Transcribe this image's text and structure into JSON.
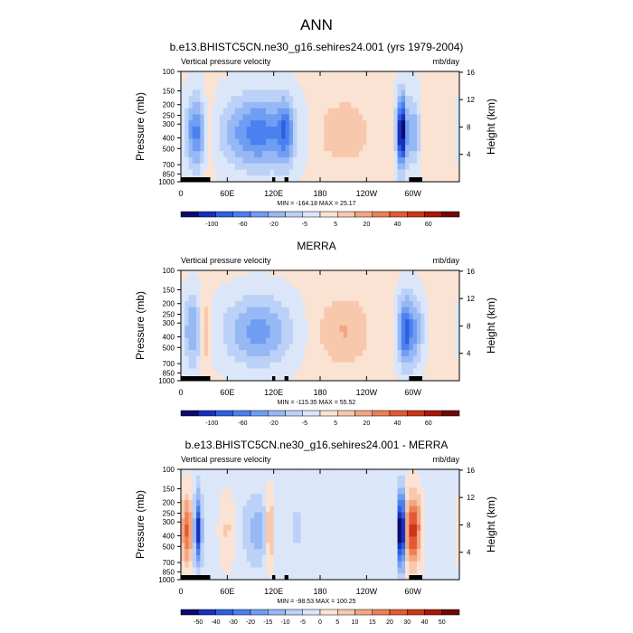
{
  "figure": {
    "main_title": "ANN"
  },
  "chart_data": [
    {
      "type": "heatmap",
      "title": "b.e13.BHISTC5CN.ne30_g16.sehires24.001 (yrs 1979-2004)",
      "left_label": "Vertical pressure velocity",
      "right_label": "mb/day",
      "ylabel": "Pressure (mb)",
      "y2label": "Height (km)",
      "x_ticks": [
        "0",
        "60E",
        "120E",
        "180",
        "120W",
        "60W"
      ],
      "x_tick_lon": [
        0,
        60,
        120,
        180,
        240,
        300
      ],
      "xlim": [
        0,
        360
      ],
      "y_ticks": [
        "100",
        "150",
        "200",
        "250",
        "300",
        "400",
        "500",
        "700",
        "850",
        "1000"
      ],
      "y_tick_p": [
        100,
        150,
        200,
        250,
        300,
        400,
        500,
        700,
        850,
        1000
      ],
      "ylim": [
        1000,
        100
      ],
      "y2_ticks": [
        "16",
        "12",
        "8",
        "4"
      ],
      "y2_tick_km": [
        16,
        12,
        8,
        4
      ],
      "stats": "MIN = -164.18  MAX = 25.17",
      "colorbar_labels": [
        "-100",
        "-60",
        "-20",
        "-5",
        "5",
        "20",
        "40",
        "60"
      ],
      "colorbar_colors": [
        "#0a0a6e",
        "#1a2fbd",
        "#2f5fe0",
        "#4a80f0",
        "#6f9df2",
        "#96b8f5",
        "#bcd1f7",
        "#dbe6f9",
        "#fbe3d4",
        "#f8c8ad",
        "#f3a582",
        "#ec7f56",
        "#e25a33",
        "#cc3418",
        "#a8180a",
        "#6e0a05"
      ],
      "features": [
        {
          "lon": 20,
          "w": 14,
          "v": -60
        },
        {
          "lon": 35,
          "w": 8,
          "v": 30
        },
        {
          "lon": 100,
          "w": 45,
          "v": -65
        },
        {
          "lon": 135,
          "w": 10,
          "v": -40
        },
        {
          "lon": 210,
          "w": 40,
          "v": 22
        },
        {
          "lon": 285,
          "w": 6,
          "v": -110
        },
        {
          "lon": 300,
          "w": 12,
          "v": -40
        },
        {
          "lon": 315,
          "w": 8,
          "v": 15
        }
      ],
      "background_value": 2
    },
    {
      "type": "heatmap",
      "title": "MERRA",
      "left_label": "Vertical pressure velocity",
      "right_label": "mb/day",
      "ylabel": "Pressure (mb)",
      "y2label": "Height (km)",
      "x_ticks": [
        "0",
        "60E",
        "120E",
        "180",
        "120W",
        "60W"
      ],
      "x_tick_lon": [
        0,
        60,
        120,
        180,
        240,
        300
      ],
      "xlim": [
        0,
        360
      ],
      "y_ticks": [
        "100",
        "150",
        "200",
        "250",
        "300",
        "400",
        "500",
        "700",
        "850",
        "1000"
      ],
      "y_tick_p": [
        100,
        150,
        200,
        250,
        300,
        400,
        500,
        700,
        850,
        1000
      ],
      "ylim": [
        1000,
        100
      ],
      "y2_ticks": [
        "16",
        "12",
        "8",
        "4"
      ],
      "y2_tick_km": [
        16,
        12,
        8,
        4
      ],
      "stats": "MIN = -115.35  MAX = 55.52",
      "colorbar_labels": [
        "-100",
        "-60",
        "-20",
        "-5",
        "5",
        "20",
        "40",
        "60"
      ],
      "colorbar_colors": [
        "#0a0a6e",
        "#1a2fbd",
        "#2f5fe0",
        "#4a80f0",
        "#6f9df2",
        "#96b8f5",
        "#bcd1f7",
        "#dbe6f9",
        "#fbe3d4",
        "#f8c8ad",
        "#f3a582",
        "#ec7f56",
        "#e25a33",
        "#cc3418",
        "#a8180a",
        "#6e0a05"
      ],
      "features": [
        {
          "lon": 15,
          "w": 12,
          "v": -45
        },
        {
          "lon": 30,
          "w": 6,
          "v": 35
        },
        {
          "lon": 100,
          "w": 45,
          "v": -50
        },
        {
          "lon": 210,
          "w": 35,
          "v": 25
        },
        {
          "lon": 290,
          "w": 10,
          "v": -75
        },
        {
          "lon": 305,
          "w": 10,
          "v": -35
        }
      ],
      "background_value": 3
    },
    {
      "type": "heatmap",
      "title": "b.e13.BHISTC5CN.ne30_g16.sehires24.001 - MERRA",
      "left_label": "Vertical pressure velocity",
      "right_label": "mb/day",
      "ylabel": "Pressure (mb)",
      "y2label": "Height (km)",
      "x_ticks": [
        "0",
        "60E",
        "120E",
        "180",
        "120W",
        "60W"
      ],
      "x_tick_lon": [
        0,
        60,
        120,
        180,
        240,
        300
      ],
      "xlim": [
        0,
        360
      ],
      "y_ticks": [
        "100",
        "150",
        "200",
        "250",
        "300",
        "400",
        "500",
        "700",
        "850",
        "1000"
      ],
      "y_tick_p": [
        100,
        150,
        200,
        250,
        300,
        400,
        500,
        700,
        850,
        1000
      ],
      "ylim": [
        1000,
        100
      ],
      "y2_ticks": [
        "16",
        "12",
        "8",
        "4"
      ],
      "y2_tick_km": [
        16,
        12,
        8,
        4
      ],
      "stats": "MIN = -98.53  MAX = 100.25",
      "colorbar_labels": [
        "-50",
        "-40",
        "-30",
        "-20",
        "-15",
        "-10",
        "-5",
        "0",
        "5",
        "10",
        "15",
        "20",
        "30",
        "40",
        "50"
      ],
      "colorbar_colors": [
        "#0a0a6e",
        "#1a2fbd",
        "#2f5fe0",
        "#4a80f0",
        "#6f9df2",
        "#96b8f5",
        "#bcd1f7",
        "#dbe6f9",
        "#fbe3d4",
        "#f8c8ad",
        "#f3a582",
        "#ec7f56",
        "#e25a33",
        "#cc3418",
        "#a8180a",
        "#6e0a05"
      ],
      "features": [
        {
          "lon": 8,
          "w": 8,
          "v": 30
        },
        {
          "lon": 22,
          "w": 5,
          "v": -45
        },
        {
          "lon": 60,
          "w": 10,
          "v": 10
        },
        {
          "lon": 100,
          "w": 20,
          "v": -15
        },
        {
          "lon": 115,
          "w": 6,
          "v": 25
        },
        {
          "lon": 150,
          "w": 15,
          "v": -6
        },
        {
          "lon": 285,
          "w": 4,
          "v": -80
        },
        {
          "lon": 300,
          "w": 10,
          "v": 40
        }
      ],
      "background_value": -2
    }
  ]
}
